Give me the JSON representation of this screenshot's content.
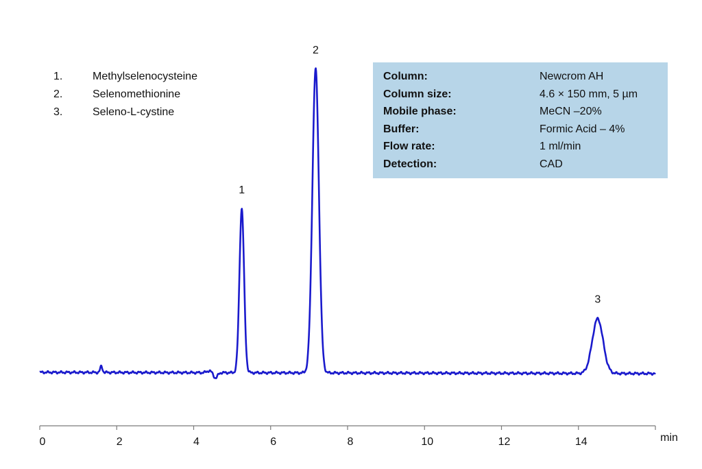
{
  "legend": {
    "items": [
      {
        "num": "1.",
        "name": "Methylselenocysteine"
      },
      {
        "num": "2.",
        "name": "Selenomethionine"
      },
      {
        "num": "3.",
        "name": "Seleno-L-cystine"
      }
    ]
  },
  "conditions": [
    {
      "label": "Column:",
      "value": "Newcrom AH"
    },
    {
      "label": "Column size:",
      "value": "4.6 × 150 mm, 5 µm"
    },
    {
      "label": "Mobile phase:",
      "value": "MeCN –20%"
    },
    {
      "label": "Buffer:",
      "value": "Formic Acid – 4%"
    },
    {
      "label": "Flow rate:",
      "value": "1 ml/min"
    },
    {
      "label": "Detection:",
      "value": "CAD"
    }
  ],
  "chart_data": {
    "type": "line",
    "x_unit_label": "min",
    "xlim": [
      0,
      16
    ],
    "x_ticks": [
      0,
      2,
      4,
      6,
      8,
      10,
      12,
      14
    ],
    "ylim": [
      -0.15,
      1.03
    ],
    "line_color": "#1a1acc",
    "baseline": 0,
    "peaks": [
      {
        "label": "1",
        "rt": 5.25,
        "height": 0.54,
        "width": 0.06
      },
      {
        "label": "2",
        "rt": 7.17,
        "height": 1.0,
        "width": 0.085
      },
      {
        "label": "3",
        "rt": 14.5,
        "height": 0.18,
        "width": 0.14
      }
    ],
    "minor_features": [
      {
        "x": 1.6,
        "height": 0.02,
        "width": 0.03
      },
      {
        "x": 4.4,
        "height": 0.006,
        "width": 0.06
      },
      {
        "x": 4.57,
        "height": -0.018,
        "width": 0.05
      }
    ]
  }
}
